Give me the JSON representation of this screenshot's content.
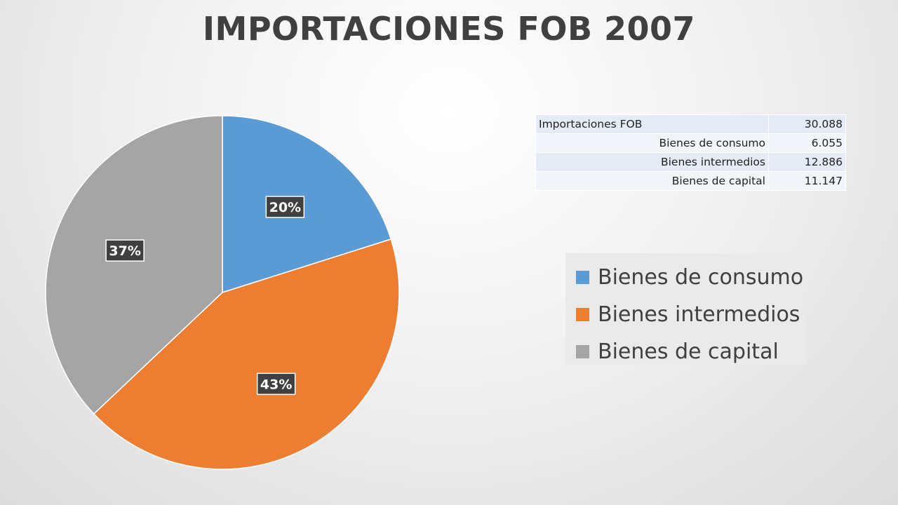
{
  "chart_data": {
    "type": "pie",
    "title": "IMPORTACIONES FOB 2007",
    "categories": [
      "Bienes de consumo",
      "Bienes intermedios",
      "Bienes de capital"
    ],
    "values": [
      6.055,
      12.886,
      11.147
    ],
    "data_labels": [
      "20%",
      "43%",
      "37%"
    ],
    "colors": [
      "#5b9bd5",
      "#ed7d31",
      "#a5a5a5"
    ],
    "legend_placement": "right"
  },
  "table": {
    "rows": [
      {
        "label": "Importaciones FOB",
        "value": "30.088"
      },
      {
        "label": "Bienes de consumo",
        "value": "6.055"
      },
      {
        "label": "Bienes intermedios",
        "value": "12.886"
      },
      {
        "label": "Bienes de capital",
        "value": "11.147"
      }
    ]
  },
  "legend": {
    "items": [
      {
        "label": "Bienes de consumo",
        "color": "#5b9bd5"
      },
      {
        "label": "Bienes intermedios",
        "color": "#ed7d31"
      },
      {
        "label": "Bienes de capital",
        "color": "#a5a5a5"
      }
    ]
  }
}
